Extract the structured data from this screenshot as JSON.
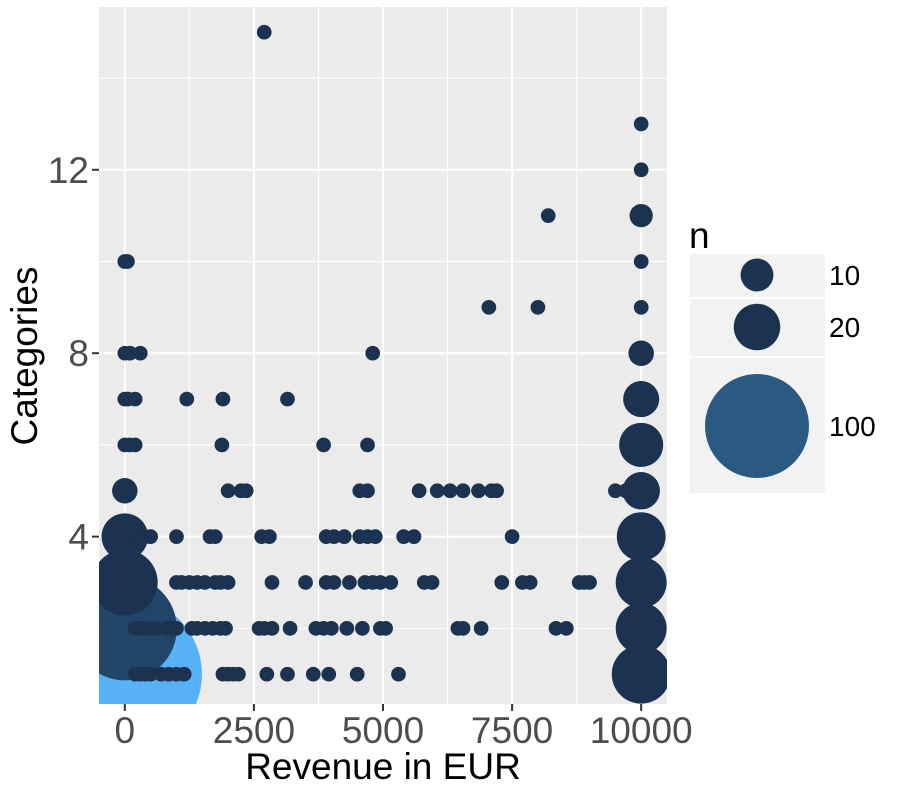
{
  "chart_data": {
    "type": "scatter",
    "xlabel": "Revenue in EUR",
    "ylabel": "Categories",
    "xlim": [
      -500,
      10500
    ],
    "ylim": [
      0.35,
      15.55
    ],
    "x_ticks": [
      0,
      2500,
      5000,
      7500,
      10000
    ],
    "x_tick_labels": [
      "0",
      "2500",
      "5000",
      "7500",
      "10000"
    ],
    "y_ticks": [
      4,
      8,
      12
    ],
    "y_tick_labels": [
      "4",
      "8",
      "12"
    ],
    "x_minor": [
      1250,
      3750,
      6250,
      8750
    ],
    "y_minor": [
      2,
      6,
      10,
      14
    ],
    "grid": true,
    "background": "#ebebeb",
    "point_color": "#1b3350",
    "size_legend": {
      "title": "n",
      "position": "right",
      "entries": [
        {
          "label": "10",
          "n": 10,
          "color": "#1b3350"
        },
        {
          "label": "20",
          "n": 20,
          "color": "#1b3350"
        },
        {
          "label": "100",
          "n": 100,
          "color": "#2a5a82"
        }
      ]
    },
    "series": [
      {
        "points": [
          {
            "x": 0,
            "y": 1,
            "n": 220,
            "color": "#56b1f7"
          },
          {
            "x": 0,
            "y": 2,
            "n": 100,
            "color": "#204569"
          },
          {
            "x": 0,
            "y": 3,
            "n": 40
          },
          {
            "x": 0,
            "y": 4,
            "n": 20
          },
          {
            "x": 0,
            "y": 5,
            "n": 6
          },
          {
            "x": 0,
            "y": 6,
            "n": 2
          },
          {
            "x": 0,
            "y": 7,
            "n": 2
          },
          {
            "x": 0,
            "y": 8,
            "n": 2
          },
          {
            "x": 0,
            "y": 10,
            "n": 2
          },
          {
            "x": 50,
            "y": 10,
            "n": 2
          },
          {
            "x": 100,
            "y": 8,
            "n": 2
          },
          {
            "x": 60,
            "y": 7,
            "n": 2
          },
          {
            "x": 100,
            "y": 6,
            "n": 2
          },
          {
            "x": 200,
            "y": 6,
            "n": 2
          },
          {
            "x": 200,
            "y": 7,
            "n": 2
          },
          {
            "x": 300,
            "y": 8,
            "n": 2
          },
          {
            "x": 50,
            "y": 5,
            "n": 3
          },
          {
            "x": 200,
            "y": 4,
            "n": 2
          },
          {
            "x": 300,
            "y": 4,
            "n": 2
          },
          {
            "x": 400,
            "y": 4,
            "n": 2
          },
          {
            "x": 500,
            "y": 4,
            "n": 2
          },
          {
            "x": 100,
            "y": 3,
            "n": 2
          },
          {
            "x": 200,
            "y": 3,
            "n": 2
          },
          {
            "x": 200,
            "y": 2,
            "n": 2
          },
          {
            "x": 300,
            "y": 2,
            "n": 2
          },
          {
            "x": 450,
            "y": 2,
            "n": 2
          },
          {
            "x": 600,
            "y": 2,
            "n": 2
          },
          {
            "x": 800,
            "y": 2,
            "n": 2
          },
          {
            "x": 900,
            "y": 2,
            "n": 2
          },
          {
            "x": 1000,
            "y": 2,
            "n": 2
          },
          {
            "x": 200,
            "y": 1,
            "n": 2
          },
          {
            "x": 300,
            "y": 1,
            "n": 2
          },
          {
            "x": 400,
            "y": 1,
            "n": 2
          },
          {
            "x": 500,
            "y": 1,
            "n": 2
          },
          {
            "x": 700,
            "y": 1,
            "n": 2
          },
          {
            "x": 850,
            "y": 1,
            "n": 2
          },
          {
            "x": 1000,
            "y": 1,
            "n": 2
          },
          {
            "x": 1150,
            "y": 1,
            "n": 2
          },
          {
            "x": 1200,
            "y": 7,
            "n": 2
          },
          {
            "x": 1000,
            "y": 4,
            "n": 2
          },
          {
            "x": 1000,
            "y": 3,
            "n": 2
          },
          {
            "x": 1100,
            "y": 3,
            "n": 2
          },
          {
            "x": 1250,
            "y": 3,
            "n": 2
          },
          {
            "x": 1400,
            "y": 3,
            "n": 2
          },
          {
            "x": 1550,
            "y": 3,
            "n": 2
          },
          {
            "x": 1750,
            "y": 3,
            "n": 2
          },
          {
            "x": 1850,
            "y": 3,
            "n": 2
          },
          {
            "x": 2000,
            "y": 3,
            "n": 2
          },
          {
            "x": 1300,
            "y": 2,
            "n": 2
          },
          {
            "x": 1400,
            "y": 2,
            "n": 2
          },
          {
            "x": 1550,
            "y": 2,
            "n": 2
          },
          {
            "x": 1700,
            "y": 2,
            "n": 2
          },
          {
            "x": 1850,
            "y": 2,
            "n": 2
          },
          {
            "x": 1950,
            "y": 2,
            "n": 2
          },
          {
            "x": 1650,
            "y": 4,
            "n": 2
          },
          {
            "x": 1750,
            "y": 4,
            "n": 2
          },
          {
            "x": 1900,
            "y": 1,
            "n": 2
          },
          {
            "x": 2000,
            "y": 1,
            "n": 2
          },
          {
            "x": 2100,
            "y": 1,
            "n": 2
          },
          {
            "x": 2200,
            "y": 1,
            "n": 2
          },
          {
            "x": 1900,
            "y": 7,
            "n": 2
          },
          {
            "x": 1880,
            "y": 6,
            "n": 2
          },
          {
            "x": 2000,
            "y": 5,
            "n": 2
          },
          {
            "x": 2250,
            "y": 5,
            "n": 2
          },
          {
            "x": 2350,
            "y": 5,
            "n": 2
          },
          {
            "x": 2700,
            "y": 15,
            "n": 2
          },
          {
            "x": 3150,
            "y": 7,
            "n": 2
          },
          {
            "x": 2650,
            "y": 4,
            "n": 2
          },
          {
            "x": 2800,
            "y": 4,
            "n": 2
          },
          {
            "x": 2850,
            "y": 3,
            "n": 2
          },
          {
            "x": 2600,
            "y": 2,
            "n": 2
          },
          {
            "x": 2700,
            "y": 2,
            "n": 2
          },
          {
            "x": 2850,
            "y": 2,
            "n": 2
          },
          {
            "x": 3200,
            "y": 2,
            "n": 2
          },
          {
            "x": 2750,
            "y": 1,
            "n": 2
          },
          {
            "x": 3150,
            "y": 1,
            "n": 2
          },
          {
            "x": 3650,
            "y": 1,
            "n": 2
          },
          {
            "x": 3950,
            "y": 1,
            "n": 2
          },
          {
            "x": 3500,
            "y": 3,
            "n": 2
          },
          {
            "x": 3900,
            "y": 3,
            "n": 2
          },
          {
            "x": 4050,
            "y": 3,
            "n": 2
          },
          {
            "x": 4350,
            "y": 3,
            "n": 2
          },
          {
            "x": 4650,
            "y": 3,
            "n": 2
          },
          {
            "x": 4800,
            "y": 3,
            "n": 2
          },
          {
            "x": 4950,
            "y": 3,
            "n": 2
          },
          {
            "x": 5150,
            "y": 3,
            "n": 2
          },
          {
            "x": 3700,
            "y": 2,
            "n": 2
          },
          {
            "x": 3850,
            "y": 2,
            "n": 2
          },
          {
            "x": 4000,
            "y": 2,
            "n": 2
          },
          {
            "x": 4300,
            "y": 2,
            "n": 2
          },
          {
            "x": 3900,
            "y": 4,
            "n": 2
          },
          {
            "x": 4050,
            "y": 4,
            "n": 2
          },
          {
            "x": 4250,
            "y": 4,
            "n": 2
          },
          {
            "x": 4550,
            "y": 4,
            "n": 2
          },
          {
            "x": 4700,
            "y": 4,
            "n": 2
          },
          {
            "x": 4850,
            "y": 4,
            "n": 2
          },
          {
            "x": 3850,
            "y": 6,
            "n": 2
          },
          {
            "x": 4700,
            "y": 6,
            "n": 2
          },
          {
            "x": 4800,
            "y": 8,
            "n": 2
          },
          {
            "x": 4550,
            "y": 5,
            "n": 2
          },
          {
            "x": 4700,
            "y": 5,
            "n": 2
          },
          {
            "x": 4500,
            "y": 1,
            "n": 2
          },
          {
            "x": 4600,
            "y": 2,
            "n": 2
          },
          {
            "x": 4950,
            "y": 2,
            "n": 2
          },
          {
            "x": 5050,
            "y": 2,
            "n": 2
          },
          {
            "x": 5300,
            "y": 1,
            "n": 2
          },
          {
            "x": 5400,
            "y": 4,
            "n": 2
          },
          {
            "x": 5600,
            "y": 4,
            "n": 2
          },
          {
            "x": 5800,
            "y": 3,
            "n": 2
          },
          {
            "x": 5950,
            "y": 3,
            "n": 2
          },
          {
            "x": 5700,
            "y": 5,
            "n": 2
          },
          {
            "x": 6050,
            "y": 5,
            "n": 2
          },
          {
            "x": 6300,
            "y": 5,
            "n": 2
          },
          {
            "x": 6550,
            "y": 5,
            "n": 2
          },
          {
            "x": 6850,
            "y": 5,
            "n": 2
          },
          {
            "x": 7100,
            "y": 5,
            "n": 2
          },
          {
            "x": 7200,
            "y": 5,
            "n": 2
          },
          {
            "x": 6450,
            "y": 2,
            "n": 2
          },
          {
            "x": 6550,
            "y": 2,
            "n": 2
          },
          {
            "x": 6900,
            "y": 2,
            "n": 2
          },
          {
            "x": 7050,
            "y": 9,
            "n": 2
          },
          {
            "x": 7300,
            "y": 3,
            "n": 2
          },
          {
            "x": 7500,
            "y": 4,
            "n": 2
          },
          {
            "x": 7700,
            "y": 3,
            "n": 2
          },
          {
            "x": 7850,
            "y": 3,
            "n": 2
          },
          {
            "x": 8000,
            "y": 9,
            "n": 2
          },
          {
            "x": 8200,
            "y": 11,
            "n": 2
          },
          {
            "x": 8350,
            "y": 2,
            "n": 2
          },
          {
            "x": 8550,
            "y": 2,
            "n": 2
          },
          {
            "x": 8800,
            "y": 3,
            "n": 2
          },
          {
            "x": 8900,
            "y": 3,
            "n": 2
          },
          {
            "x": 9000,
            "y": 3,
            "n": 2
          },
          {
            "x": 9500,
            "y": 5,
            "n": 2
          },
          {
            "x": 9700,
            "y": 5,
            "n": 2
          },
          {
            "x": 10000,
            "y": 13,
            "n": 2
          },
          {
            "x": 10000,
            "y": 12,
            "n": 2
          },
          {
            "x": 10000,
            "y": 11,
            "n": 5
          },
          {
            "x": 10000,
            "y": 10,
            "n": 2
          },
          {
            "x": 10000,
            "y": 9,
            "n": 2
          },
          {
            "x": 10000,
            "y": 8,
            "n": 6
          },
          {
            "x": 10000,
            "y": 7,
            "n": 12
          },
          {
            "x": 10000,
            "y": 6,
            "n": 18
          },
          {
            "x": 10000,
            "y": 5,
            "n": 13
          },
          {
            "x": 10000,
            "y": 4,
            "n": 22
          },
          {
            "x": 10000,
            "y": 3,
            "n": 24
          },
          {
            "x": 10000,
            "y": 2,
            "n": 24
          },
          {
            "x": 10000,
            "y": 1,
            "n": 32
          }
        ]
      }
    ]
  }
}
